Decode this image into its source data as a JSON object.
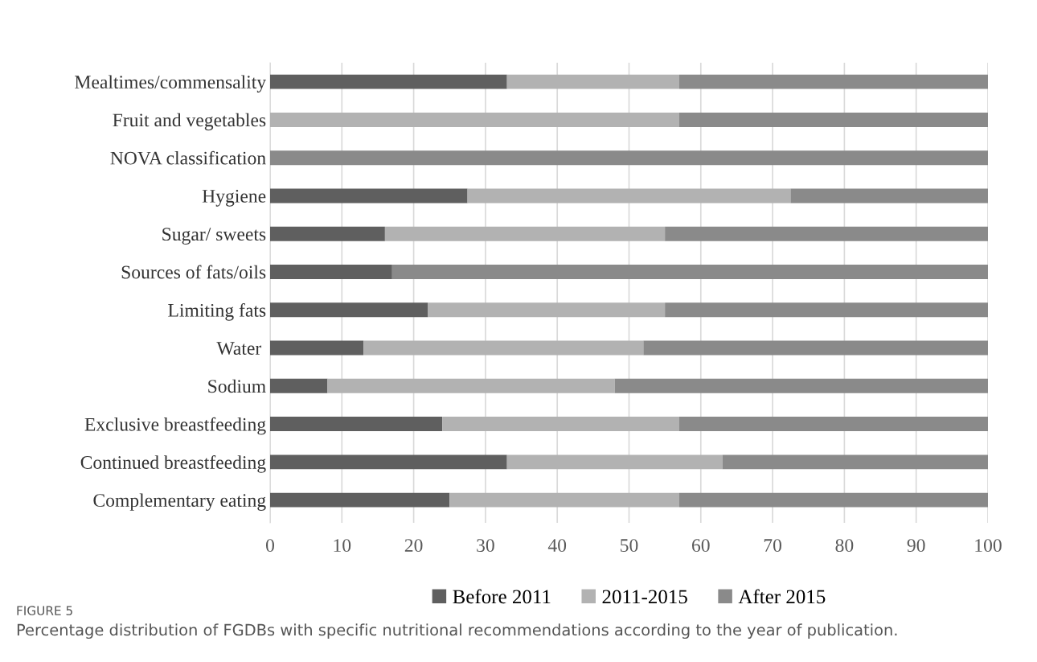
{
  "chart_data": {
    "type": "bar",
    "orientation": "horizontal",
    "stacked": true,
    "categories": [
      "Mealtimes/commensality",
      "Fruit and vegetables",
      "NOVA classification",
      "Hygiene",
      "Sugar/ sweets",
      "Sources of fats/oils",
      "Limiting fats",
      "Water ",
      "Sodium",
      "Exclusive breastfeeding",
      "Continued breastfeeding",
      "Complementary eating"
    ],
    "series": [
      {
        "name": "Before 2011",
        "color": "#5f5f5f",
        "values": [
          33,
          0,
          0,
          27.5,
          16,
          17,
          22,
          13,
          8,
          24,
          33,
          25
        ]
      },
      {
        "name": "2011-2015",
        "color": "#b2b2b2",
        "values": [
          24,
          57,
          0,
          45,
          39,
          0,
          33,
          39,
          40,
          33,
          30,
          32
        ]
      },
      {
        "name": "After 2015",
        "color": "#8a8a8a",
        "values": [
          43,
          43,
          100,
          27.5,
          45,
          83,
          45,
          48,
          52,
          43,
          37,
          43
        ]
      }
    ],
    "xlim": [
      0,
      100
    ],
    "xticks": [
      0,
      10,
      20,
      30,
      40,
      50,
      60,
      70,
      80,
      90,
      100
    ],
    "grid": "x",
    "legend": "bottom",
    "annotations": [
      "FIGURE 5",
      "Percentage distribution of FGDBs with specific nutritional recommendations according to the year of publication."
    ]
  }
}
